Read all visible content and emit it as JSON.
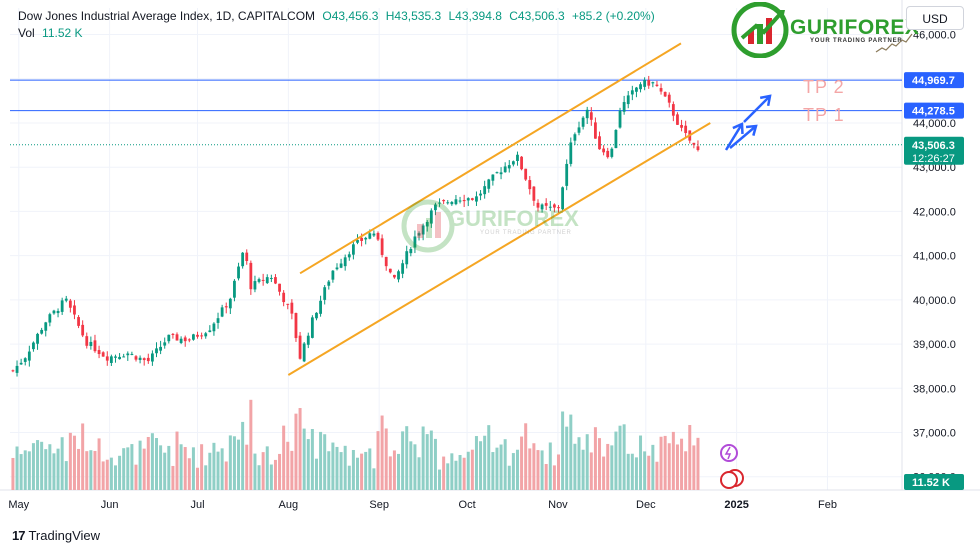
{
  "legend": {
    "title": "Dow Jones Industrial Average Index, 1D, CAPITALCOM",
    "open": "O43,456.3",
    "high": "H43,535.3",
    "low": "L43,394.8",
    "close": "C43,506.3",
    "change": "+85.2 (+0.20%)",
    "vol_label": "Vol",
    "vol_value": "11.52 K"
  },
  "currency_button": "USD",
  "brand": {
    "name": "GURIFOREX",
    "tagline": "YOUR TRADING PARTNER"
  },
  "footer": {
    "logo": "17",
    "text": "TradingView"
  },
  "annotations": {
    "tp2": "TP 2",
    "tp1": "TP 1"
  },
  "colors": {
    "up": "#089981",
    "down": "#f23645",
    "vol_up": "#8fcfc6",
    "vol_down": "#f2a4a7",
    "channel": "#f5a623",
    "level": "#2962ff",
    "arrow": "#2962ff"
  },
  "chart_data": {
    "type": "candlestick",
    "symbol": "Dow Jones Industrial Average Index",
    "interval": "1D",
    "source": "CAPITALCOM",
    "ylim": [
      35700,
      46600
    ],
    "x_tick_labels": [
      "May",
      "Jun",
      "Jul",
      "Aug",
      "Sep",
      "Oct",
      "Nov",
      "Dec",
      "2025",
      "Feb"
    ],
    "y_tick_labels": [
      "36,000.0",
      "37,000.0",
      "38,000.0",
      "39,000.0",
      "40,000.0",
      "41,000.0",
      "42,000.0",
      "43,000.0",
      "44,000.0",
      "45,000.0",
      "46,000.0"
    ],
    "y_tick_values": [
      36000,
      37000,
      38000,
      39000,
      40000,
      41000,
      42000,
      43000,
      44000,
      45000,
      46000
    ],
    "levels": [
      {
        "label": "44,969.7",
        "value": 44969.7
      },
      {
        "label": "44,278.5",
        "value": 44278.5
      }
    ],
    "current_price": {
      "label": "43,506.3",
      "value": 43506.3,
      "countdown": "12:26:27"
    },
    "volume_badge": "11.52 K",
    "channel": {
      "upper": [
        {
          "date": "2024-08-05",
          "value": 40600
        },
        {
          "date": "2024-12-13",
          "value": 45800
        }
      ],
      "lower": [
        {
          "date": "2024-08-01",
          "value": 38300
        },
        {
          "date": "2024-12-23",
          "value": 44000
        }
      ]
    },
    "closes": [
      {
        "date": "2024-04-29",
        "close": 38400
      },
      {
        "date": "2024-05-03",
        "close": 38700
      },
      {
        "date": "2024-05-10",
        "close": 39500
      },
      {
        "date": "2024-05-17",
        "close": 40000
      },
      {
        "date": "2024-05-24",
        "close": 39050
      },
      {
        "date": "2024-05-31",
        "close": 38700
      },
      {
        "date": "2024-06-07",
        "close": 38800
      },
      {
        "date": "2024-06-14",
        "close": 38600
      },
      {
        "date": "2024-06-21",
        "close": 39150
      },
      {
        "date": "2024-06-28",
        "close": 39100
      },
      {
        "date": "2024-07-05",
        "close": 39350
      },
      {
        "date": "2024-07-12",
        "close": 40000
      },
      {
        "date": "2024-07-17",
        "close": 41200
      },
      {
        "date": "2024-07-19",
        "close": 40300
      },
      {
        "date": "2024-07-26",
        "close": 40550
      },
      {
        "date": "2024-08-02",
        "close": 39700
      },
      {
        "date": "2024-08-05",
        "close": 38700
      },
      {
        "date": "2024-08-09",
        "close": 39500
      },
      {
        "date": "2024-08-16",
        "close": 40650
      },
      {
        "date": "2024-08-23",
        "close": 41200
      },
      {
        "date": "2024-08-30",
        "close": 41550
      },
      {
        "date": "2024-09-06",
        "close": 40400
      },
      {
        "date": "2024-09-13",
        "close": 41400
      },
      {
        "date": "2024-09-20",
        "close": 42100
      },
      {
        "date": "2024-09-27",
        "close": 42300
      },
      {
        "date": "2024-10-04",
        "close": 42300
      },
      {
        "date": "2024-10-11",
        "close": 42850
      },
      {
        "date": "2024-10-18",
        "close": 43250
      },
      {
        "date": "2024-10-25",
        "close": 42100
      },
      {
        "date": "2024-11-01",
        "close": 42050
      },
      {
        "date": "2024-11-06",
        "close": 43700
      },
      {
        "date": "2024-11-11",
        "close": 44300
      },
      {
        "date": "2024-11-15",
        "close": 43450
      },
      {
        "date": "2024-11-19",
        "close": 43250
      },
      {
        "date": "2024-11-22",
        "close": 44300
      },
      {
        "date": "2024-11-29",
        "close": 44900
      },
      {
        "date": "2024-12-04",
        "close": 44900
      },
      {
        "date": "2024-12-09",
        "close": 44400
      },
      {
        "date": "2024-12-13",
        "close": 43850
      },
      {
        "date": "2024-12-19",
        "close": 43350
      },
      {
        "date": "2024-12-20",
        "close": 43506.3
      }
    ]
  }
}
